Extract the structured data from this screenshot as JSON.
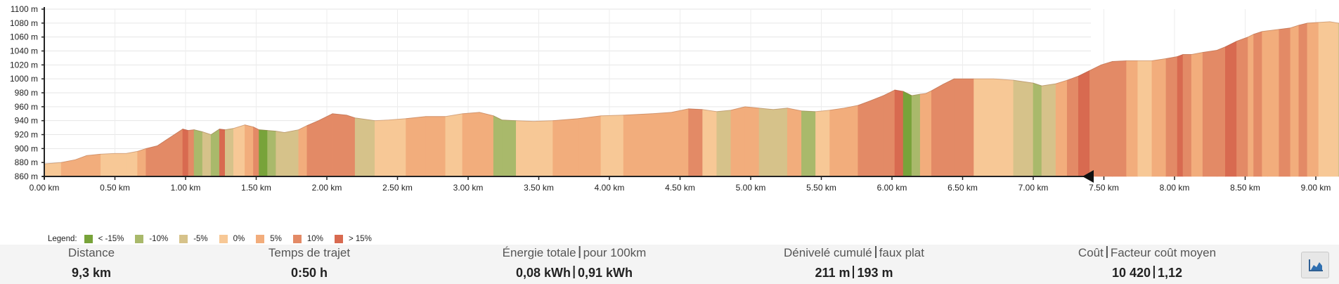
{
  "chart_data": {
    "type": "area",
    "xlabel": "",
    "ylabel": "",
    "x_unit": "km",
    "y_unit": "m",
    "xlim": [
      0,
      9.3
    ],
    "ylim": [
      860,
      1100
    ],
    "grid": true,
    "legend_placement": "bottom-left",
    "y_ticks": [
      "860 m",
      "880 m",
      "900 m",
      "920 m",
      "940 m",
      "960 m",
      "980 m",
      "1000 m",
      "1020 m",
      "1040 m",
      "1060 m",
      "1080 m",
      "1100 m"
    ],
    "x_ticks": [
      "0.00 km",
      "0.50 km",
      "1.00 km",
      "1.50 km",
      "2.00 km",
      "2.50 km",
      "3.00 km",
      "3.50 km",
      "4.00 km",
      "4.50 km",
      "5.00 km",
      "5.50 km",
      "6.00 km",
      "6.50 km",
      "7.00 km",
      "7.50 km",
      "8.00 km",
      "8.50 km",
      "9.00 km"
    ],
    "x": [
      0,
      0.12,
      0.22,
      0.3,
      0.4,
      0.5,
      0.58,
      0.66,
      0.72,
      0.8,
      0.86,
      0.92,
      0.98,
      1.02,
      1.06,
      1.12,
      1.18,
      1.24,
      1.28,
      1.34,
      1.42,
      1.48,
      1.52,
      1.58,
      1.64,
      1.7,
      1.8,
      1.86,
      1.94,
      2.04,
      2.14,
      2.2,
      2.34,
      2.44,
      2.56,
      2.7,
      2.84,
      2.96,
      3.08,
      3.18,
      3.24,
      3.34,
      3.46,
      3.6,
      3.78,
      3.94,
      4.1,
      4.3,
      4.44,
      4.56,
      4.66,
      4.76,
      4.86,
      4.96,
      5.06,
      5.16,
      5.26,
      5.36,
      5.46,
      5.56,
      5.66,
      5.76,
      5.84,
      5.94,
      6.02,
      6.08,
      6.14,
      6.2,
      6.24,
      6.28,
      6.36,
      6.44,
      6.58,
      6.72,
      6.86,
      7.0,
      7.06,
      7.16,
      7.24,
      7.32,
      7.4,
      7.48,
      7.56,
      7.66,
      7.74,
      7.84,
      7.94,
      8.02,
      8.06,
      8.12,
      8.2,
      8.3,
      8.36,
      8.44,
      8.52,
      8.56,
      8.62,
      8.66,
      8.74,
      8.82,
      8.88,
      8.94,
      9.02,
      9.1,
      9.16,
      9.22,
      9.28
    ],
    "y": [
      878,
      880,
      884,
      890,
      892,
      893,
      893,
      896,
      900,
      904,
      912,
      920,
      928,
      926,
      927,
      924,
      920,
      928,
      927,
      929,
      934,
      931,
      927,
      926,
      925,
      923,
      927,
      933,
      940,
      950,
      948,
      944,
      940,
      941,
      943,
      946,
      946,
      950,
      952,
      947,
      941,
      940,
      939,
      940,
      943,
      947,
      948,
      950,
      952,
      957,
      956,
      953,
      955,
      960,
      958,
      956,
      958,
      954,
      953,
      955,
      958,
      962,
      968,
      976,
      984,
      982,
      976,
      978,
      979,
      983,
      992,
      1000,
      1000,
      1000,
      998,
      994,
      990,
      993,
      998,
      1004,
      1012,
      1020,
      1025,
      1026,
      1026,
      1026,
      1029,
      1032,
      1035,
      1035,
      1038,
      1041,
      1046,
      1054,
      1060,
      1064,
      1068,
      1069,
      1071,
      1073,
      1077,
      1080,
      1081,
      1082,
      1080,
      1078,
      1072
    ],
    "grade_classes": [
      "0",
      "5",
      "5",
      "5",
      "0",
      "0",
      "0",
      "5",
      "10",
      "10",
      "10",
      "10",
      "15",
      "10",
      "-10",
      "-5",
      "-10",
      "15",
      "-5",
      "0",
      "5",
      "10",
      "-15",
      "-10",
      "-5",
      "-5",
      "5",
      "10",
      "10",
      "10",
      "10",
      "-5",
      "0",
      "0",
      "5",
      "5",
      "0",
      "5",
      "5",
      "-10",
      "-10",
      "0",
      "0",
      "5",
      "5",
      "0",
      "5",
      "5",
      "5",
      "10",
      "0",
      "-5",
      "5",
      "5",
      "-5",
      "-5",
      "5",
      "-10",
      "0",
      "5",
      "5",
      "10",
      "10",
      "10",
      "15",
      "-15",
      "-10",
      "5",
      "5",
      "10",
      "10",
      "10",
      "0",
      "0",
      "-5",
      "-10",
      "-5",
      "5",
      "10",
      "15",
      "10",
      "10",
      "10",
      "5",
      "0",
      "5",
      "10",
      "15",
      "10",
      "5",
      "10",
      "10",
      "15",
      "10",
      "5",
      "10",
      "5",
      "5",
      "10",
      "5",
      "10",
      "5",
      "0",
      "0",
      "-5",
      "-10",
      "-10"
    ]
  },
  "legend": {
    "title": "Legend:",
    "items": [
      {
        "key": "-15",
        "label": "< -15%",
        "color": "#78a33a"
      },
      {
        "key": "-10",
        "label": "-10%",
        "color": "#a9b96b"
      },
      {
        "key": "-5",
        "label": "-5%",
        "color": "#d6c28a"
      },
      {
        "key": "0",
        "label": "0%",
        "color": "#f7c896"
      },
      {
        "key": "5",
        "label": "5%",
        "color": "#f2ad7c"
      },
      {
        "key": "10",
        "label": "10%",
        "color": "#e38a66"
      },
      {
        "key": "15",
        "label": "> 15%",
        "color": "#d86a50"
      }
    ]
  },
  "stats": {
    "distance": {
      "label": "Distance",
      "value": "9,3 km"
    },
    "duration": {
      "label": "Temps de trajet",
      "value": "0:50 h"
    },
    "energy": {
      "label_a": "Énergie totale",
      "label_b": "pour 100km",
      "value_a": "0,08 kWh",
      "value_b": "0,91 kWh"
    },
    "elevation": {
      "label_a": "Dénivelé cumulé",
      "label_b": "faux plat",
      "value_a": "211 m",
      "value_b": "193 m"
    },
    "cost": {
      "label_a": "Coût",
      "label_b": "Facteur coût moyen",
      "value_a": "10 420",
      "value_b": "1,12"
    }
  },
  "toolbar": {
    "chart_icon": "area-chart-icon"
  }
}
